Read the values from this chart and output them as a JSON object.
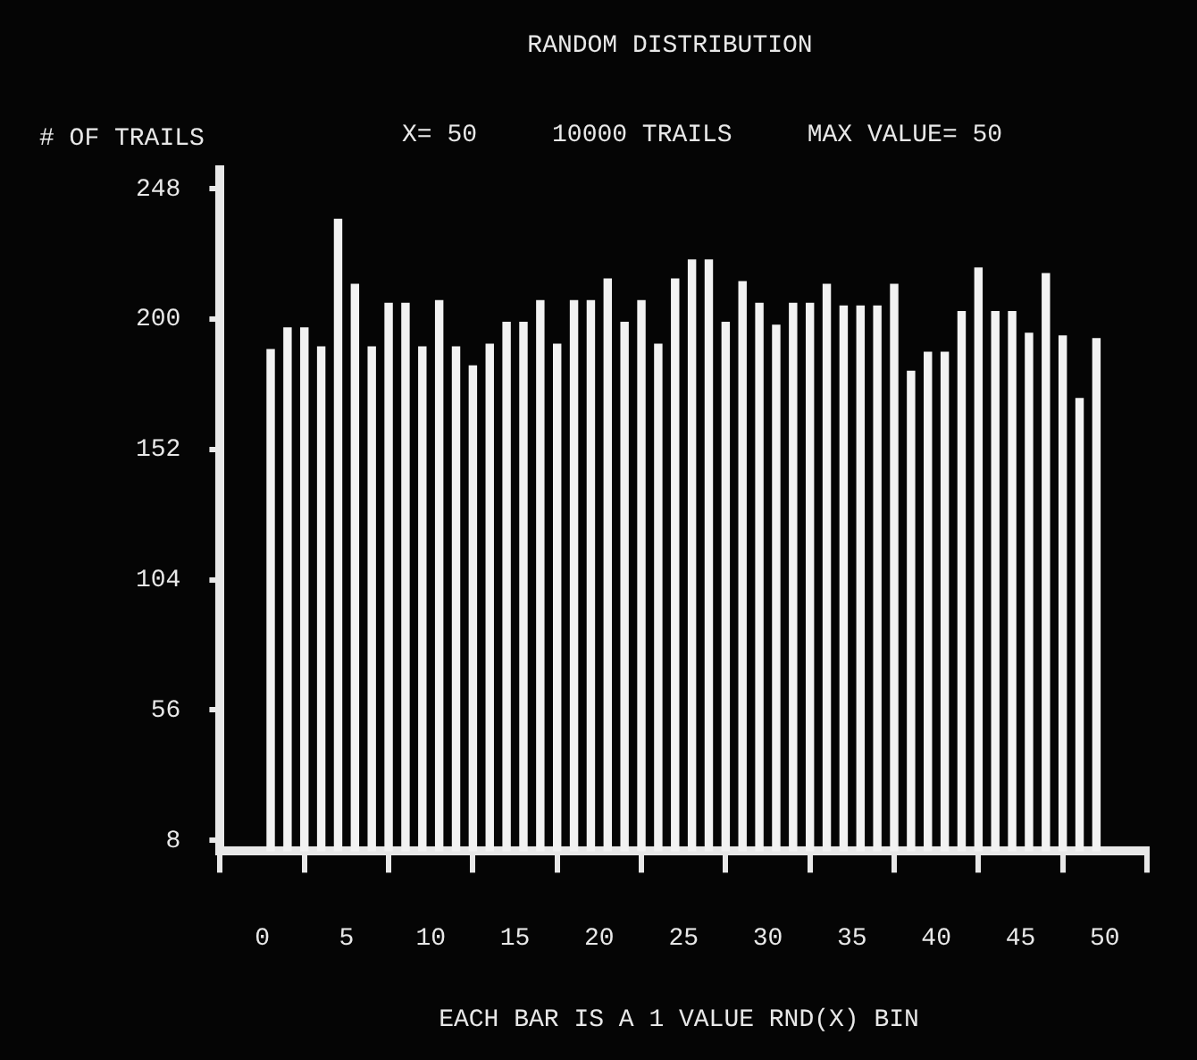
{
  "chart_data": {
    "type": "histogram",
    "title": "RANDOM DISTRIBUTION",
    "ylabel": "# OF TRAILS",
    "xlabel": "EACH BAR IS A 1 VALUE RND(X) BIN",
    "annotations": [
      "X= 50",
      "10000 TRAILS",
      "MAX VALUE= 50"
    ],
    "bins": [
      0,
      1,
      2,
      3,
      4,
      5,
      6,
      7,
      8,
      9,
      10,
      11,
      12,
      13,
      14,
      15,
      16,
      17,
      18,
      19,
      20,
      21,
      22,
      23,
      24,
      25,
      26,
      27,
      28,
      29,
      30,
      31,
      32,
      33,
      34,
      35,
      36,
      37,
      38,
      39,
      40,
      41,
      42,
      43,
      44,
      45,
      46,
      47,
      48,
      49,
      50
    ],
    "values": [
      189,
      197,
      197,
      190,
      237,
      213,
      190,
      206,
      206,
      190,
      207,
      190,
      183,
      191,
      199,
      199,
      207,
      191,
      207,
      207,
      215,
      199,
      207,
      191,
      215,
      222,
      222,
      199,
      214,
      206,
      198,
      206,
      206,
      213,
      205,
      205,
      205,
      213,
      181,
      188,
      188,
      203,
      219,
      203,
      203,
      195,
      217,
      194,
      171,
      193
    ],
    "color": "#f2f2f2",
    "xlim": [
      0,
      50
    ],
    "xticks": [
      0,
      5,
      10,
      15,
      20,
      25,
      30,
      35,
      40,
      45,
      50
    ],
    "ylim": [
      4,
      255
    ],
    "yticks": [
      8,
      56,
      104,
      152,
      200,
      248
    ],
    "grid": false,
    "legend": false
  }
}
